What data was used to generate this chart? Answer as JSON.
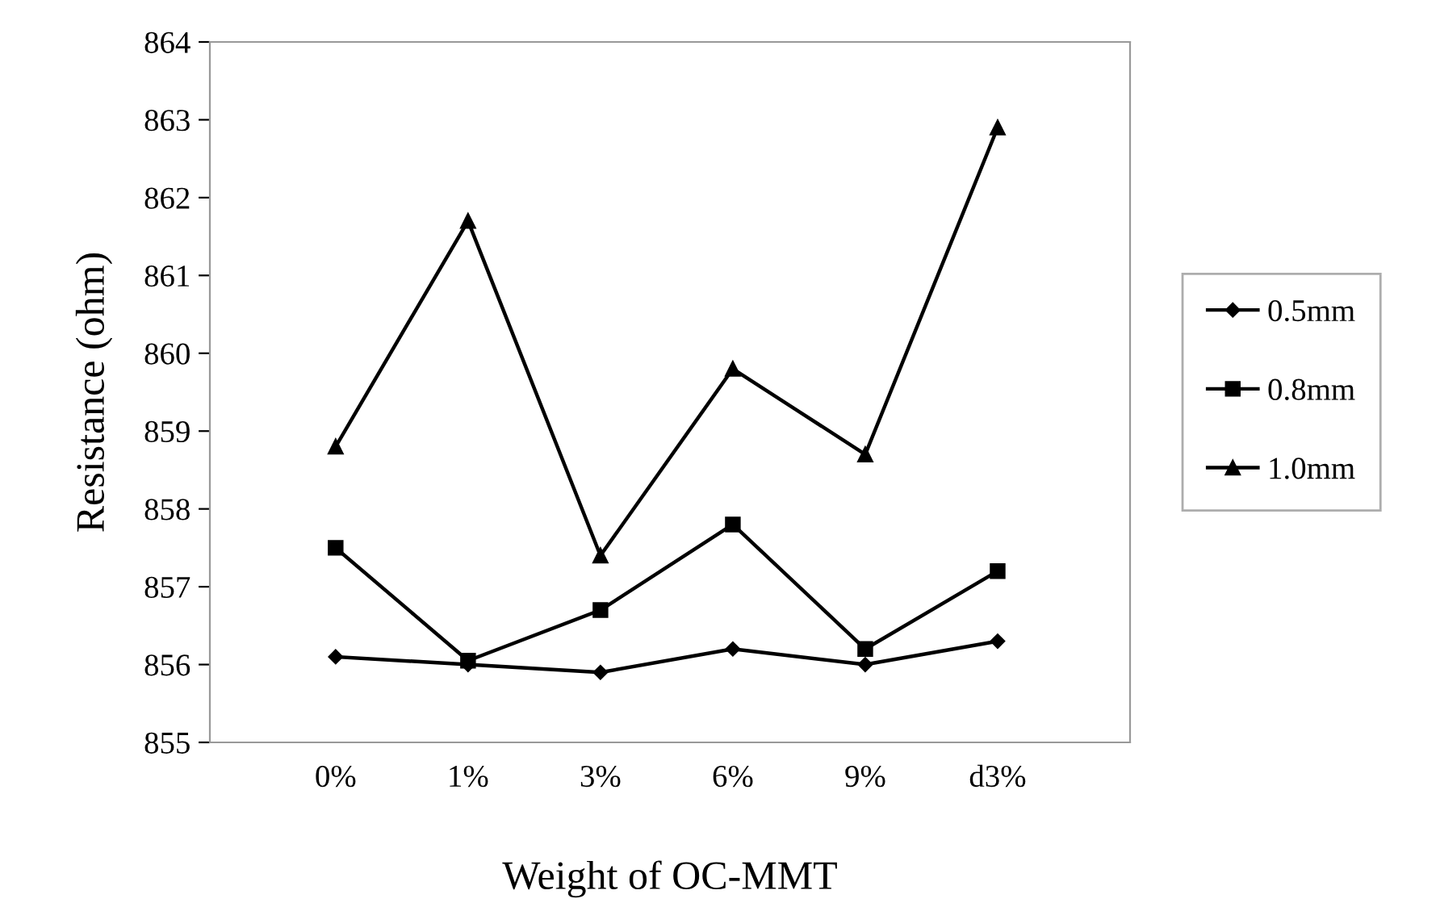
{
  "chart_data": {
    "type": "line",
    "xlabel": "Weight of OC-MMT",
    "ylabel": "Resistance (ohm)",
    "categories": [
      "0%",
      "1%",
      "3%",
      "6%",
      "9%",
      "d3%"
    ],
    "series": [
      {
        "name": "0.5mm",
        "color": "#000000",
        "marker": "diamond",
        "values": [
          856.1,
          856.0,
          855.9,
          856.2,
          856.0,
          856.3
        ]
      },
      {
        "name": "0.8mm",
        "color": "#000000",
        "marker": "square",
        "values": [
          857.5,
          856.05,
          856.7,
          857.8,
          856.2,
          857.2
        ]
      },
      {
        "name": "1.0mm",
        "color": "#000000",
        "marker": "triangle",
        "values": [
          858.8,
          861.7,
          857.4,
          859.8,
          858.7,
          862.9
        ]
      }
    ],
    "ylim": [
      855,
      864
    ],
    "yticks": [
      855,
      856,
      857,
      858,
      859,
      860,
      861,
      862,
      863,
      864
    ],
    "grid": false,
    "legend": "right",
    "line_style": "solid"
  }
}
